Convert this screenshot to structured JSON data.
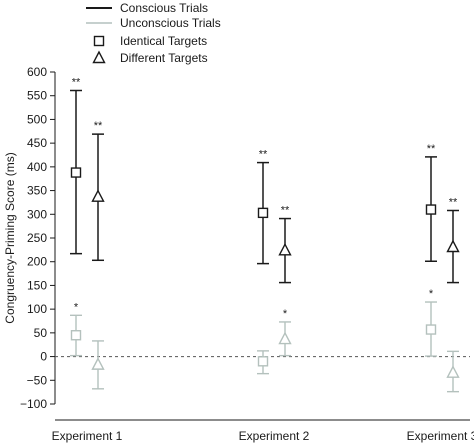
{
  "chart_data": {
    "type": "scatter",
    "title": "",
    "ylabel": "Congruency-Priming Score (ms)",
    "ylim": [
      -100,
      600
    ],
    "yticks": [
      -100,
      -50,
      0,
      50,
      100,
      150,
      200,
      250,
      300,
      350,
      400,
      450,
      500,
      550,
      600
    ],
    "categories": [
      "Experiment 1",
      "Experiment 2",
      "Experiment 3"
    ],
    "grid": false,
    "legend_position": "top",
    "legend": [
      {
        "key": "conscious",
        "label": "Conscious Trials",
        "kind": "line",
        "color": "#1a1a1a"
      },
      {
        "key": "unconscious",
        "label": "Unconscious Trials",
        "kind": "line",
        "color": "#b4c1bd"
      },
      {
        "key": "identical",
        "label": "Identical Targets",
        "kind": "marker",
        "marker": "square"
      },
      {
        "key": "different",
        "label": "Different Targets",
        "kind": "marker",
        "marker": "triangle"
      }
    ],
    "colors": {
      "conscious": "#1a1a1a",
      "unconscious": "#b4c1bd",
      "zero_line": "#555555"
    },
    "series": [
      {
        "condition": "conscious",
        "target": "identical",
        "marker": "square",
        "values": [
          388,
          303,
          310
        ],
        "lower": [
          217,
          196,
          201
        ],
        "upper": [
          561,
          409,
          421
        ],
        "annotations": [
          "**",
          "**",
          "**"
        ]
      },
      {
        "condition": "conscious",
        "target": "different",
        "marker": "triangle",
        "values": [
          337,
          224,
          231
        ],
        "lower": [
          203,
          156,
          156
        ],
        "upper": [
          469,
          291,
          308
        ],
        "annotations": [
          "**",
          "**",
          "**"
        ]
      },
      {
        "condition": "unconscious",
        "target": "identical",
        "marker": "square",
        "values": [
          45,
          -10,
          57
        ],
        "lower": [
          2,
          -36,
          1
        ],
        "upper": [
          87,
          12,
          115
        ],
        "annotations": [
          "*",
          "",
          "*"
        ]
      },
      {
        "condition": "unconscious",
        "target": "different",
        "marker": "triangle",
        "values": [
          -17,
          37,
          -34
        ],
        "lower": [
          -68,
          2,
          -74
        ],
        "upper": [
          33,
          73,
          11
        ],
        "annotations": [
          "",
          "*",
          ""
        ]
      }
    ]
  }
}
